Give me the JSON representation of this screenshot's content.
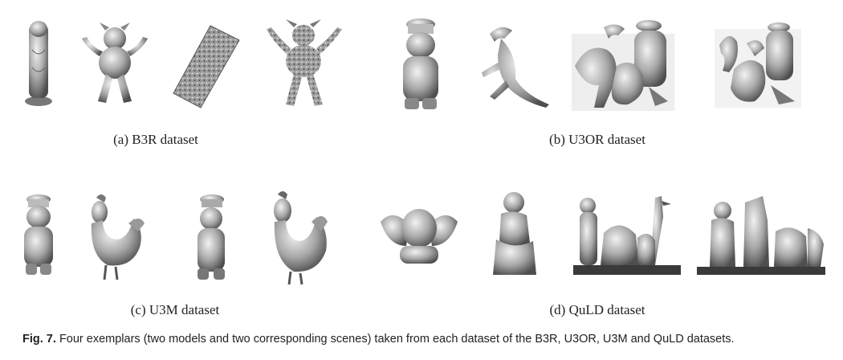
{
  "panels": [
    {
      "caption": "(a) B3R dataset",
      "thumbs": [
        {
          "name": "buddha-model"
        },
        {
          "name": "dragon-model"
        },
        {
          "name": "buddha-scene"
        },
        {
          "name": "dragon-scene"
        }
      ]
    },
    {
      "caption": "(b) U3OR dataset",
      "thumbs": [
        {
          "name": "chef-model"
        },
        {
          "name": "trex-model"
        },
        {
          "name": "cluttered-scene-1"
        },
        {
          "name": "cluttered-scene-2"
        }
      ]
    },
    {
      "caption": "(c) U3M dataset",
      "thumbs": [
        {
          "name": "chef-model"
        },
        {
          "name": "chicken-model"
        },
        {
          "name": "chef-scan"
        },
        {
          "name": "chicken-scan"
        }
      ]
    },
    {
      "caption": "(d) QuLD dataset",
      "thumbs": [
        {
          "name": "angel-model"
        },
        {
          "name": "boy-model"
        },
        {
          "name": "cluttered-scene-1"
        },
        {
          "name": "cluttered-scene-2"
        }
      ]
    }
  ],
  "figure_caption": {
    "label": "Fig. 7.",
    "text": "Four exemplars (two models and two corresponding scenes) taken from each dataset of the B3R, U3OR, U3M and QuLD datasets."
  },
  "colors": {
    "object_light": "#ececec",
    "object_mid": "#9a9a9a",
    "object_dark": "#4a4a4a"
  }
}
